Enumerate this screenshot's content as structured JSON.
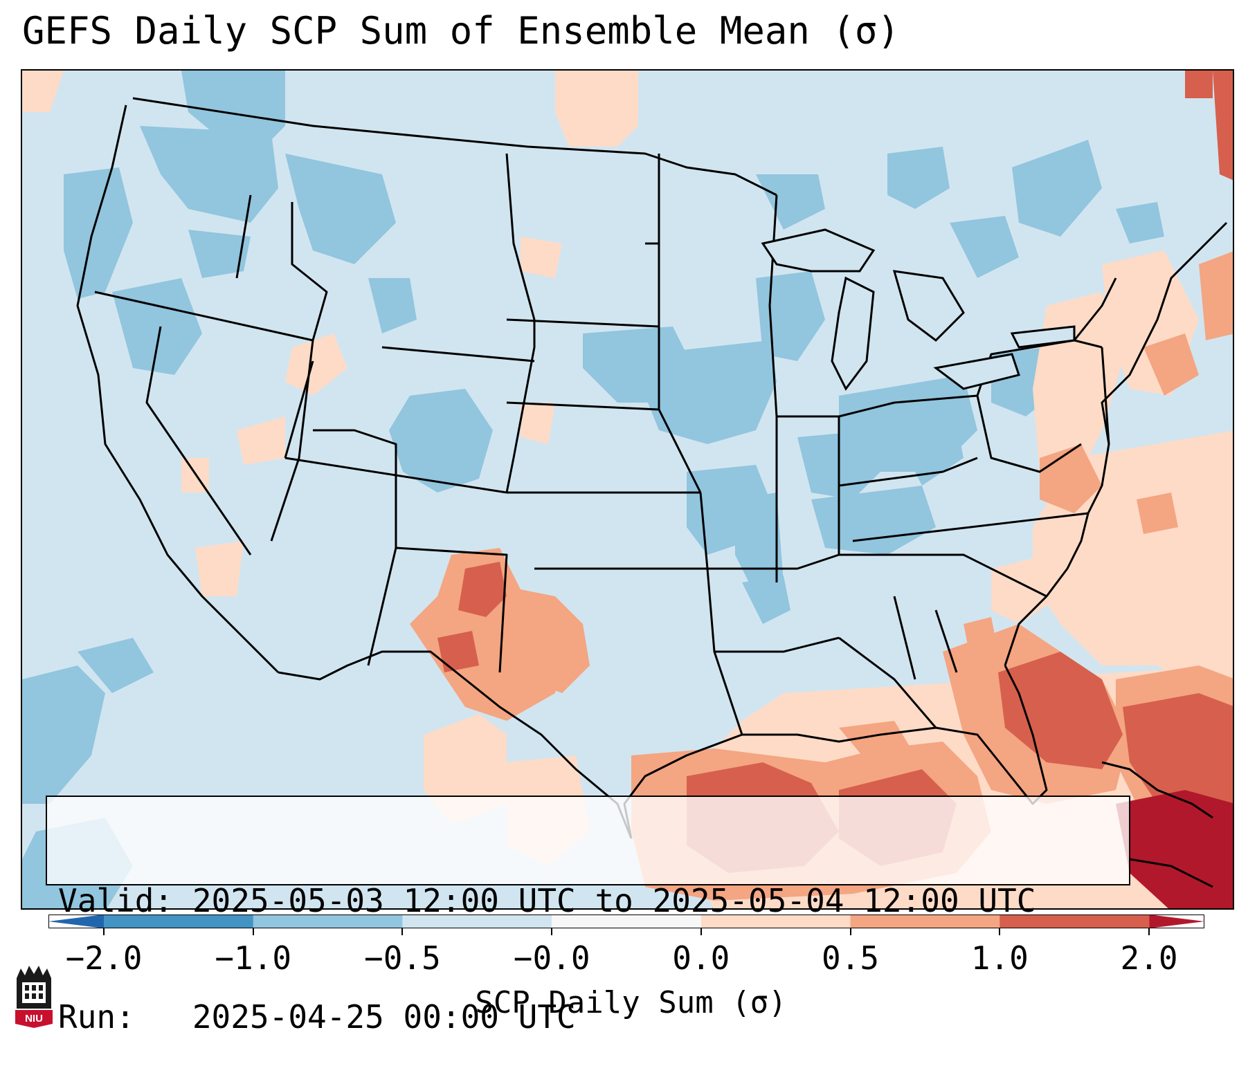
{
  "title": "GEFS Daily SCP Sum of Ensemble Mean (σ)",
  "info": {
    "valid": "Valid: 2025-05-03 12:00 UTC to 2025-05-04 12:00 UTC",
    "run": "Run:   2025-04-25 00:00 UTC"
  },
  "colorbar": {
    "label": "SCP Daily Sum (σ)",
    "ticks": [
      "−2.0",
      "−1.0",
      "−0.5",
      "−0.0",
      "0.0",
      "0.5",
      "1.0",
      "2.0"
    ],
    "colors": [
      "#4393c3",
      "#92c5de",
      "#d1e5f0",
      "#f7f7f7",
      "#fddbc7",
      "#f4a582",
      "#d6604d"
    ],
    "extend_low_color": "#2166ac",
    "extend_high_color": "#b2182b"
  },
  "map": {
    "projection": "Lambert Conformal, CONUS",
    "background_color": "#d1e5f0",
    "boundary_color": "#000000"
  },
  "logo": {
    "text": "NIU",
    "icon": "niu-logo-icon"
  }
}
